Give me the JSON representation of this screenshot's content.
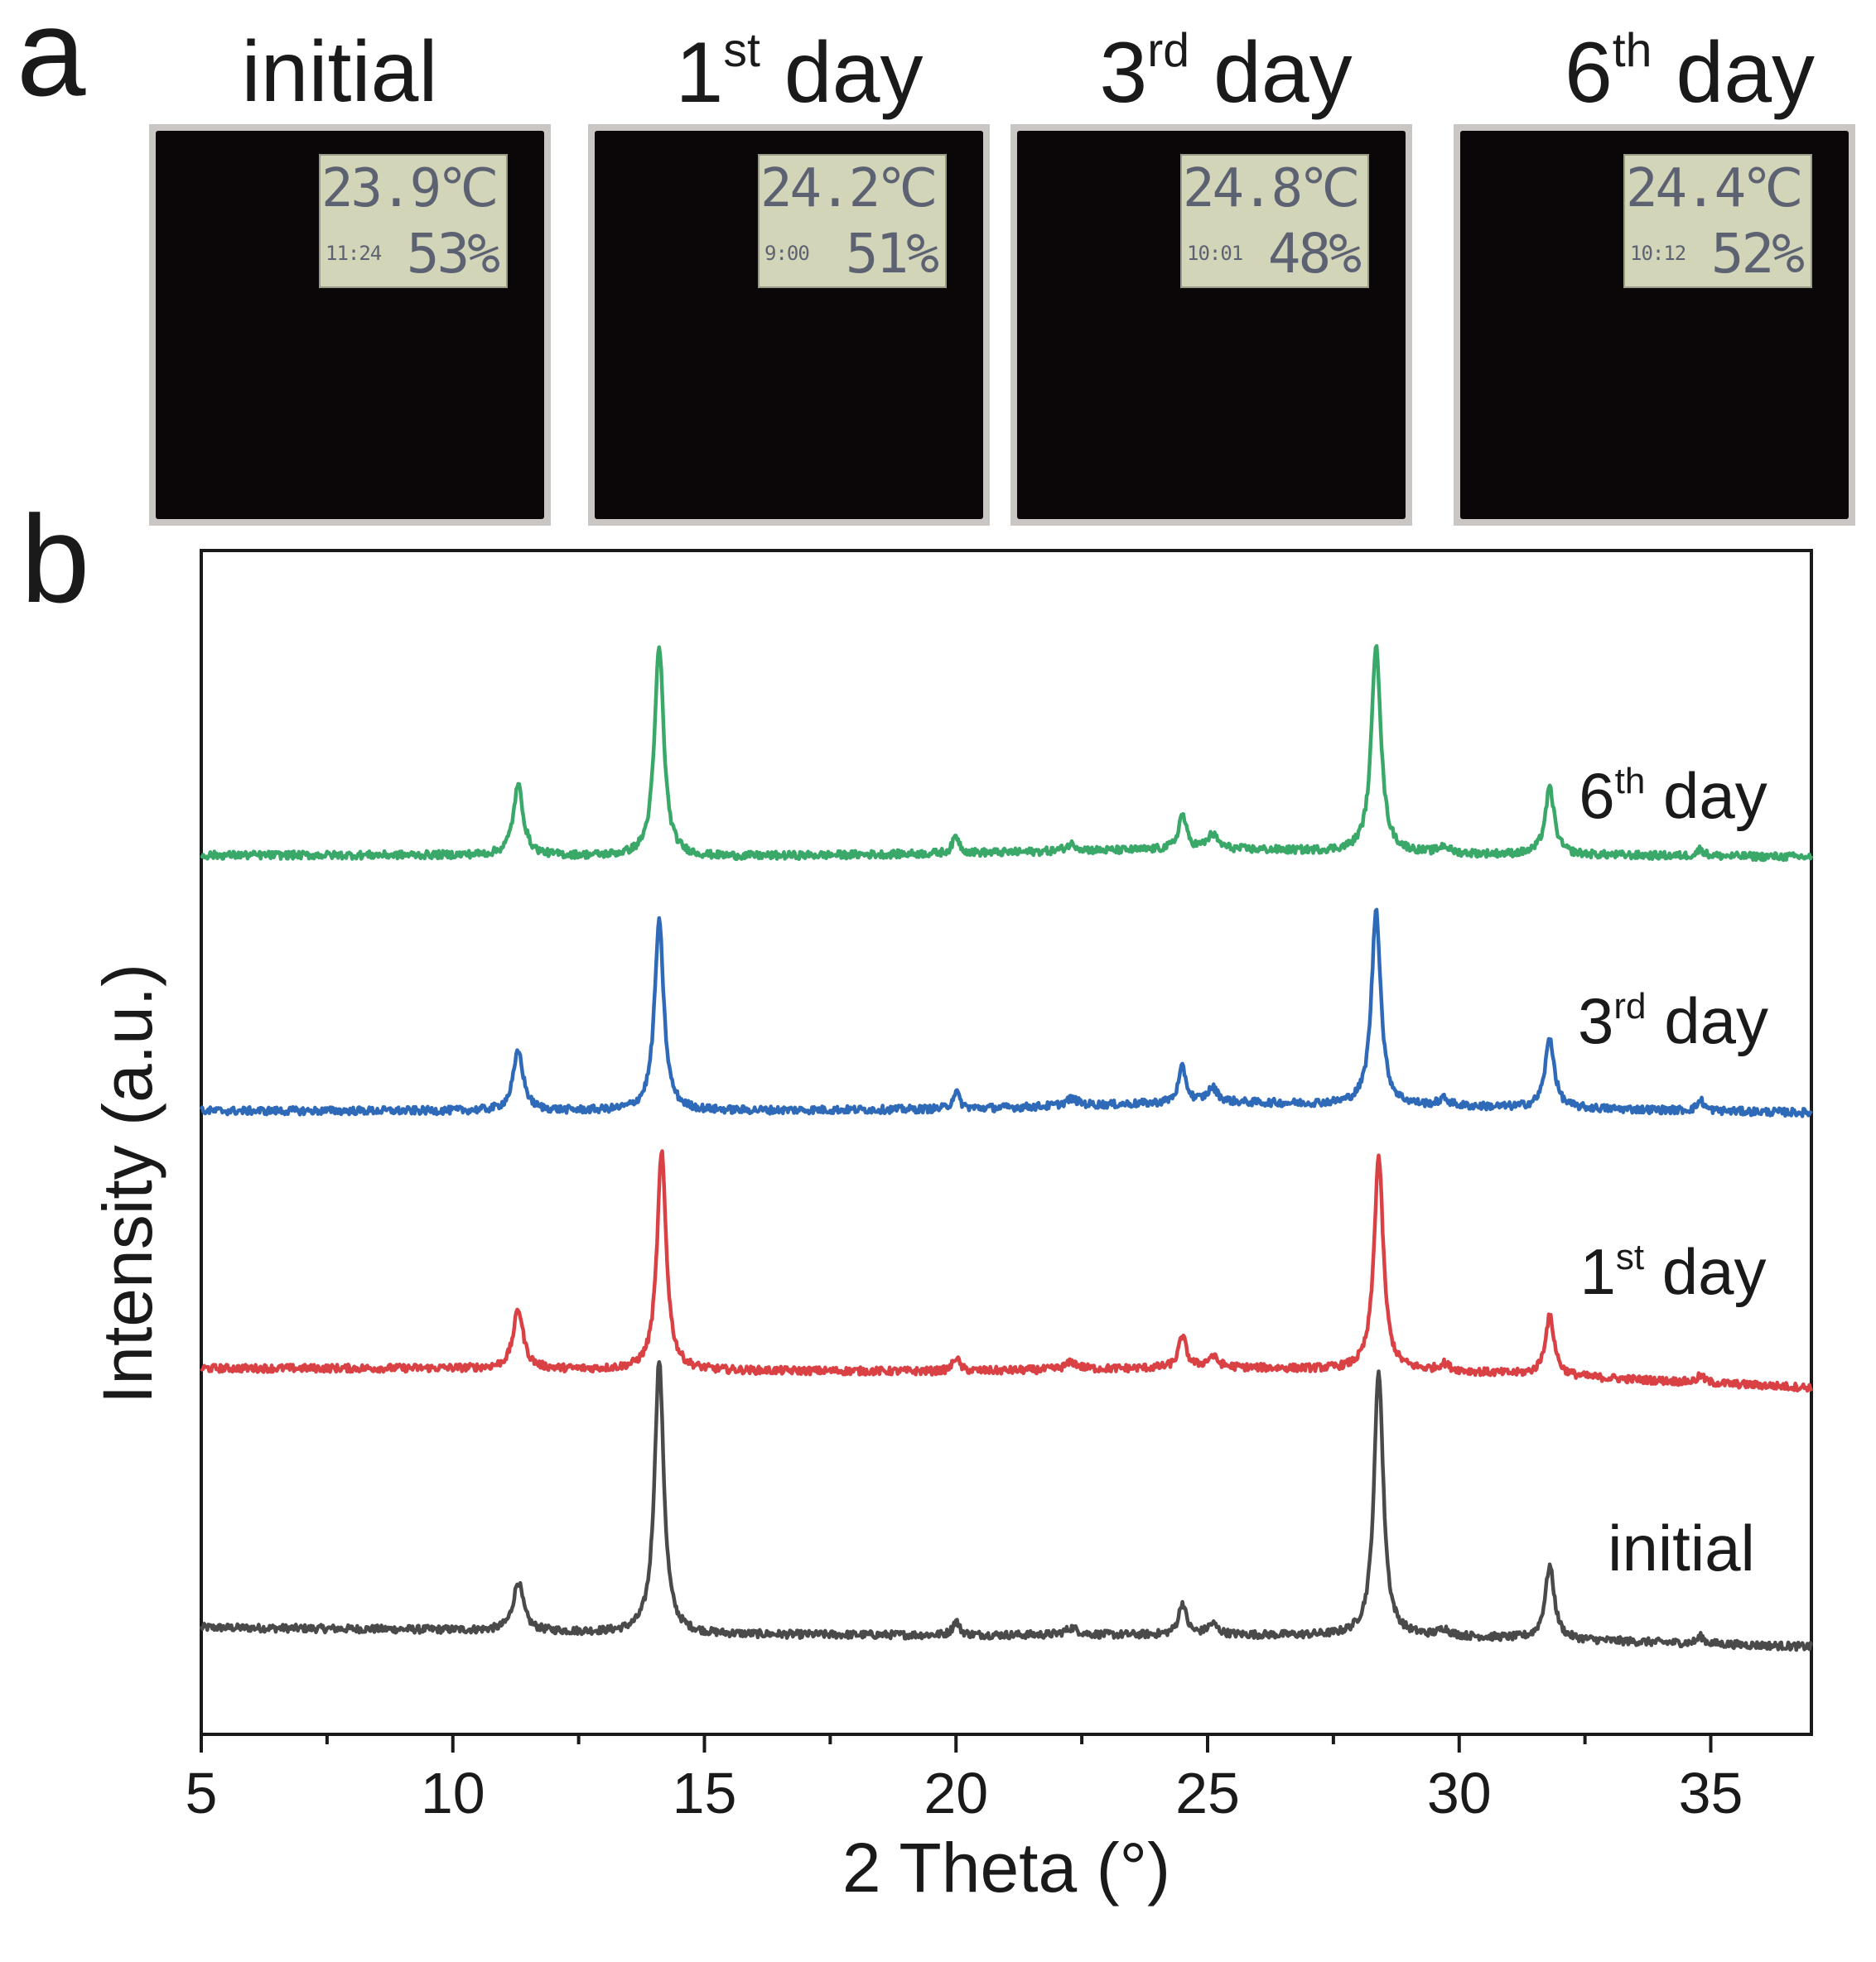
{
  "panels": {
    "a_label": "a",
    "b_label": "b"
  },
  "photos": [
    {
      "title": "initial",
      "title_sup": "",
      "title_suffix": "",
      "temperature": "23.9℃",
      "time": "11:24",
      "humidity": "53%"
    },
    {
      "title": "1",
      "title_sup": "st",
      "title_suffix": " day",
      "temperature": "24.2℃",
      "time": "9:00",
      "humidity": "51%"
    },
    {
      "title": "3",
      "title_sup": "rd",
      "title_suffix": " day",
      "temperature": "24.8℃",
      "time": "10:01",
      "humidity": "48%"
    },
    {
      "title": "6",
      "title_sup": "th",
      "title_suffix": " day",
      "temperature": "24.4℃",
      "time": "10:12",
      "humidity": "52%"
    }
  ],
  "chart_data": {
    "type": "line",
    "xlabel": "2 Theta (°)",
    "ylabel": "Intensity (a.u.)",
    "xlim": [
      5,
      37
    ],
    "xticks": [
      5,
      10,
      15,
      20,
      25,
      30,
      35
    ],
    "yticks_shown": false,
    "grid": false,
    "legend": "inline labels at right end of each trace",
    "colors": {
      "initial": "#4a4a4a",
      "day1": "#d94145",
      "day3": "#2f6ab8",
      "day6": "#3aa868"
    },
    "series": [
      {
        "name": "initial",
        "name_sup": "",
        "name_suffix": "",
        "offset": 0,
        "baseline": [
          [
            5,
            12.5
          ],
          [
            10,
            11.8
          ],
          [
            15,
            10.5
          ],
          [
            20,
            10.3
          ],
          [
            25,
            10.4
          ],
          [
            30,
            9.8
          ],
          [
            37,
            7.0
          ]
        ],
        "peaks": [
          [
            11.3,
            14,
            0.12
          ],
          [
            14.1,
            78,
            0.11
          ],
          [
            20.0,
            4,
            0.08
          ],
          [
            22.3,
            2,
            0.15
          ],
          [
            24.5,
            9,
            0.09
          ],
          [
            25.1,
            3,
            0.12
          ],
          [
            28.4,
            76,
            0.11
          ],
          [
            29.7,
            2,
            0.12
          ],
          [
            31.8,
            21,
            0.11
          ],
          [
            34.8,
            2,
            0.08
          ]
        ]
      },
      {
        "name": "1",
        "name_sup": "st",
        "name_suffix": " day",
        "offset": 76,
        "baseline": [
          [
            5,
            10.5
          ],
          [
            10,
            10.5
          ],
          [
            15,
            9.8
          ],
          [
            20,
            9.6
          ],
          [
            25,
            10.8
          ],
          [
            30,
            9.5
          ],
          [
            37,
            5.0
          ]
        ],
        "peaks": [
          [
            11.3,
            17,
            0.12
          ],
          [
            14.15,
            62,
            0.11
          ],
          [
            20.0,
            4,
            0.08
          ],
          [
            22.3,
            2,
            0.15
          ],
          [
            24.5,
            9,
            0.09
          ],
          [
            25.1,
            3,
            0.12
          ],
          [
            28.4,
            61,
            0.11
          ],
          [
            29.7,
            2,
            0.12
          ],
          [
            31.8,
            17,
            0.11
          ],
          [
            34.8,
            2,
            0.08
          ]
        ]
      },
      {
        "name": "3",
        "name_sup": "rd",
        "name_suffix": " day",
        "offset": 150,
        "baseline": [
          [
            5,
            10.0
          ],
          [
            10,
            10.0
          ],
          [
            15,
            10.0
          ],
          [
            20,
            10.5
          ],
          [
            25,
            12.5
          ],
          [
            30,
            11.2
          ],
          [
            37,
            9.5
          ]
        ],
        "peaks": [
          [
            11.3,
            17,
            0.12
          ],
          [
            14.1,
            54,
            0.11
          ],
          [
            20.0,
            5,
            0.08
          ],
          [
            22.3,
            2,
            0.15
          ],
          [
            24.5,
            10,
            0.09
          ],
          [
            25.1,
            4,
            0.12
          ],
          [
            28.35,
            56,
            0.11
          ],
          [
            29.7,
            2,
            0.12
          ],
          [
            31.8,
            20,
            0.11
          ],
          [
            34.8,
            3,
            0.08
          ]
        ]
      },
      {
        "name": "6",
        "name_sup": "th",
        "name_suffix": " day",
        "offset": 225,
        "baseline": [
          [
            5,
            8.0
          ],
          [
            10,
            8.0
          ],
          [
            15,
            7.5
          ],
          [
            20,
            8.5
          ],
          [
            25,
            9.8
          ],
          [
            30,
            8.3
          ],
          [
            37,
            7.5
          ]
        ],
        "peaks": [
          [
            11.3,
            20,
            0.12
          ],
          [
            14.1,
            60,
            0.11
          ],
          [
            20.0,
            5,
            0.08
          ],
          [
            22.3,
            2,
            0.15
          ],
          [
            24.5,
            10,
            0.09
          ],
          [
            25.1,
            4,
            0.12
          ],
          [
            28.35,
            60,
            0.11
          ],
          [
            29.7,
            2,
            0.12
          ],
          [
            31.8,
            19,
            0.11
          ],
          [
            34.8,
            2,
            0.08
          ]
        ]
      }
    ]
  }
}
